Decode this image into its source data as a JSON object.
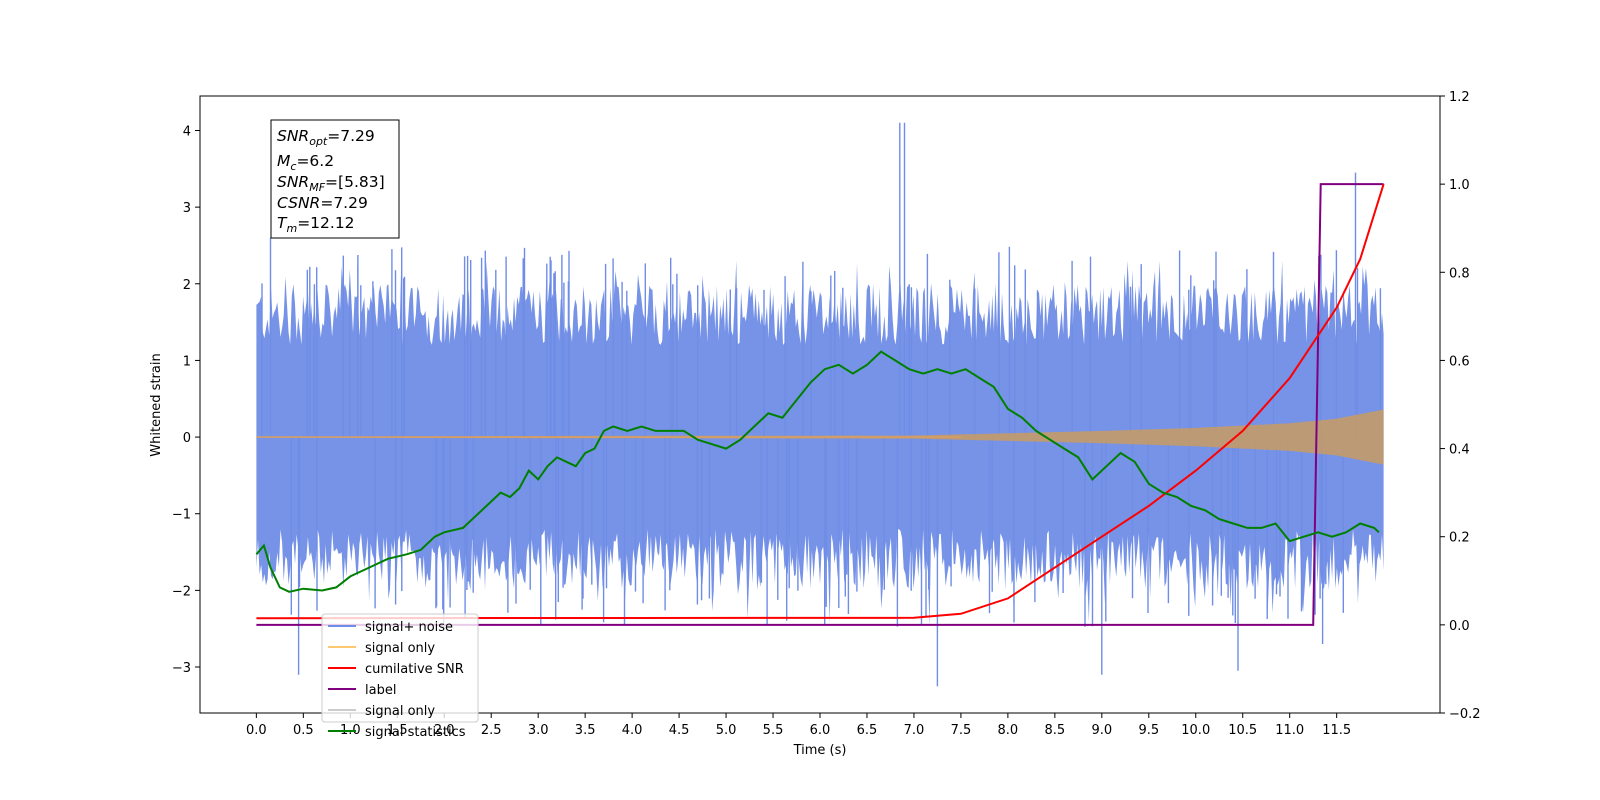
{
  "chart_data": {
    "type": "line",
    "title": "",
    "xlabel": "Time (s)",
    "ylabel": "Whitened strain",
    "y2label": "",
    "xlim": [
      -0.6,
      12.6
    ],
    "ylim": [
      -3.6,
      4.45
    ],
    "y2lim": [
      -0.2,
      1.2
    ],
    "xticks": [
      "0.0",
      "0.5",
      "1.0",
      "1.5",
      "2.0",
      "2.5",
      "3.0",
      "3.5",
      "4.0",
      "4.5",
      "5.0",
      "5.5",
      "6.0",
      "6.5",
      "7.0",
      "7.5",
      "8.0",
      "8.5",
      "9.0",
      "9.5",
      "10.0",
      "10.5",
      "11.0",
      "11.5"
    ],
    "yticks": [
      "−3",
      "−2",
      "−1",
      "0",
      "1",
      "2",
      "3",
      "4"
    ],
    "y2ticks": [
      "−0.2",
      "0.0",
      "0.2",
      "0.4",
      "0.6",
      "0.8",
      "1.0",
      "1.2"
    ],
    "grid": false,
    "legend_position": "lower-left",
    "annotation": {
      "lines": [
        {
          "var": "SNR",
          "sub": "opt",
          "value": "=7.29"
        },
        {
          "var": "M",
          "sub": "c",
          "value": "=6.2"
        },
        {
          "var": "SNR",
          "sub": "MF",
          "value": "=[5.83]"
        },
        {
          "var": "CSNR",
          "sub": "",
          "value": "=7.29"
        },
        {
          "var": "T",
          "sub": "m",
          "value": "=12.12"
        }
      ]
    },
    "legend": [
      {
        "name": "signal+ noise",
        "color": "#6f8de6"
      },
      {
        "name": "signal only",
        "color": "#ffc870"
      },
      {
        "name": "cumilative SNR",
        "color": "#ff0000"
      },
      {
        "name": "label",
        "color": "#800080"
      },
      {
        "name": "signal only",
        "color": "#cccccc"
      },
      {
        "name": "signal statistics",
        "color": "#008000"
      }
    ],
    "series": [
      {
        "name": "signal+ noise",
        "axis": "left",
        "color": "#6f8de6",
        "description_range": [
          0.0,
          12.0
        ],
        "envelope": {
          "x": [
            0.0,
            12.0
          ],
          "typical_abs": 1.6,
          "peaks": [
            [
              0.15,
              2.6
            ],
            [
              0.45,
              -3.1
            ],
            [
              6.85,
              4.1
            ],
            [
              6.9,
              4.1
            ],
            [
              7.25,
              -3.25
            ],
            [
              9.0,
              -3.1
            ],
            [
              10.45,
              -3.05
            ],
            [
              11.7,
              3.45
            ],
            [
              11.35,
              -2.7
            ]
          ]
        }
      },
      {
        "name": "signal only",
        "axis": "left",
        "color": "#c09a70",
        "amplitude_x": [
          0.0,
          7.0,
          8.0,
          9.0,
          10.0,
          11.0,
          11.5,
          12.0
        ],
        "amplitude_y": [
          0.01,
          0.02,
          0.05,
          0.08,
          0.12,
          0.18,
          0.24,
          0.36
        ]
      },
      {
        "name": "cumilative SNR",
        "axis": "right",
        "color": "#ff0000",
        "x": [
          0.0,
          7.0,
          7.5,
          8.0,
          8.5,
          9.0,
          9.5,
          10.0,
          10.5,
          11.0,
          11.5,
          11.75,
          12.0
        ],
        "y": [
          0.015,
          0.016,
          0.025,
          0.06,
          0.13,
          0.2,
          0.27,
          0.35,
          0.44,
          0.56,
          0.72,
          0.83,
          1.0
        ]
      },
      {
        "name": "label",
        "axis": "right",
        "color": "#800080",
        "x": [
          0.0,
          11.25,
          11.33,
          11.33,
          12.0
        ],
        "y": [
          0.0,
          0.0,
          1.0,
          1.0,
          1.0
        ]
      },
      {
        "name": "signal statistics",
        "axis": "right",
        "color": "#008000",
        "x": [
          0.0,
          0.08,
          0.15,
          0.25,
          0.35,
          0.5,
          0.7,
          0.85,
          1.0,
          1.2,
          1.4,
          1.6,
          1.75,
          1.9,
          2.0,
          2.2,
          2.35,
          2.5,
          2.6,
          2.7,
          2.8,
          2.9,
          3.0,
          3.1,
          3.2,
          3.3,
          3.4,
          3.5,
          3.6,
          3.7,
          3.8,
          3.95,
          4.1,
          4.25,
          4.4,
          4.55,
          4.7,
          4.85,
          5.0,
          5.15,
          5.3,
          5.45,
          5.6,
          5.75,
          5.9,
          6.05,
          6.2,
          6.35,
          6.5,
          6.65,
          6.8,
          6.95,
          7.1,
          7.25,
          7.4,
          7.55,
          7.7,
          7.85,
          8.0,
          8.15,
          8.3,
          8.45,
          8.6,
          8.75,
          8.9,
          9.05,
          9.2,
          9.35,
          9.5,
          9.65,
          9.8,
          9.95,
          10.1,
          10.25,
          10.4,
          10.55,
          10.7,
          10.85,
          11.0,
          11.15,
          11.3,
          11.45,
          11.6,
          11.75,
          11.9,
          11.95
        ],
        "y": [
          0.16,
          0.18,
          0.13,
          0.085,
          0.075,
          0.082,
          0.078,
          0.085,
          0.11,
          0.13,
          0.15,
          0.16,
          0.17,
          0.2,
          0.21,
          0.22,
          0.25,
          0.28,
          0.3,
          0.29,
          0.31,
          0.35,
          0.33,
          0.36,
          0.38,
          0.37,
          0.36,
          0.39,
          0.4,
          0.44,
          0.45,
          0.44,
          0.45,
          0.44,
          0.44,
          0.44,
          0.42,
          0.41,
          0.4,
          0.42,
          0.45,
          0.48,
          0.47,
          0.51,
          0.55,
          0.58,
          0.59,
          0.57,
          0.59,
          0.62,
          0.6,
          0.58,
          0.57,
          0.58,
          0.57,
          0.58,
          0.56,
          0.54,
          0.49,
          0.47,
          0.44,
          0.42,
          0.4,
          0.38,
          0.33,
          0.36,
          0.39,
          0.37,
          0.32,
          0.3,
          0.29,
          0.27,
          0.26,
          0.24,
          0.23,
          0.22,
          0.22,
          0.23,
          0.19,
          0.2,
          0.21,
          0.2,
          0.21,
          0.23,
          0.22,
          0.21
        ]
      }
    ]
  }
}
